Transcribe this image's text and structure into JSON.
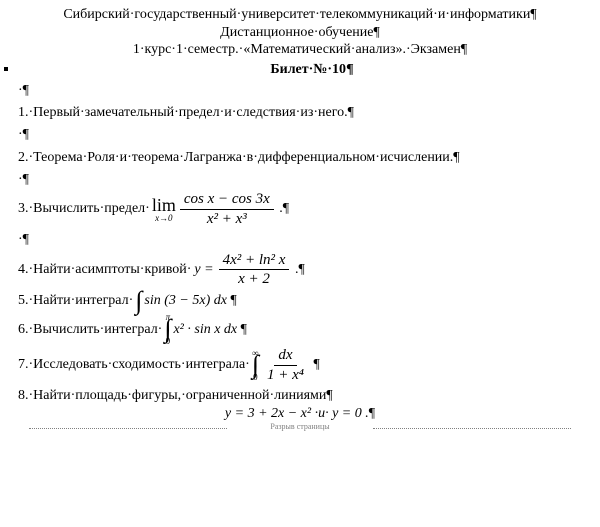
{
  "header": {
    "l1": "Сибирский·государственный·университет·телекоммуникаций·и·информатики",
    "l2": "Дистанционное·обучение",
    "l3": "1·курс·1·семестр.·«Математический·анализ».·Экзамен"
  },
  "ticket": "Билет·№·10",
  "q1": "1.·Первый·замечательный·предел·и·следствия·из·него.",
  "q2": "2.·Теорема·Роля·и·теорема·Лагранжа·в·дифференциальном·исчислении.",
  "q3_lead": "3.·Вычислить·предел·",
  "q3_limword": "lim",
  "q3_limsub": "x→0",
  "q3_num": "cos x − cos 3x",
  "q3_den": "x² + x³",
  "q4_lead": "4.·Найти·асимптоты·кривой·",
  "q4_y": "y =",
  "q4_num": "4x² + ln² x",
  "q4_den": "x + 2",
  "q5_lead": "5.·Найти·интеграл·",
  "q5_int": "sin (3 − 5x) dx",
  "q6_lead": "6.·Вычислить·интеграл·",
  "q6_ub": "π",
  "q6_lb": "0",
  "q6_expr": "x² · sin x dx",
  "q7_lead": "7.·Исследовать·сходимость·интеграла·",
  "q7_ub": "∞",
  "q7_lb": "0",
  "q7_num": "dx",
  "q7_den": "1 + x⁴",
  "q8_lead": "8.·Найти·площадь·фигуры,·ограниченной·линиями",
  "q8_eq": "y = 3 + 2x − x² ·и· y = 0 .",
  "footer": "Разрыв страницы"
}
